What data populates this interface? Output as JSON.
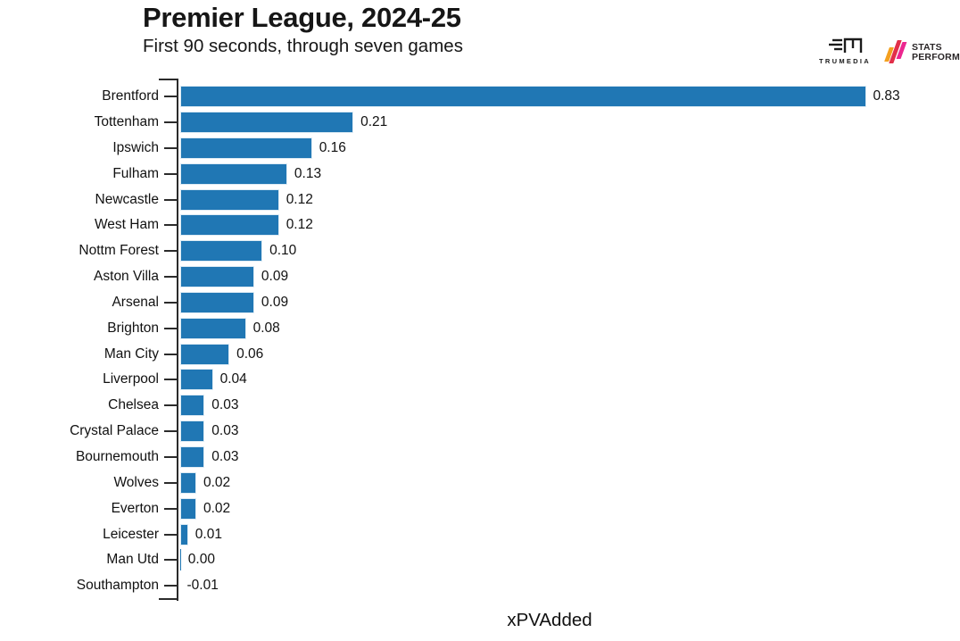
{
  "header": {
    "title": "Premier League, 2024-25",
    "subtitle": "First 90 seconds, through seven games"
  },
  "branding": {
    "trumedia": {
      "label": "TRUMEDIA"
    },
    "stats_perform": {
      "line1": "STATS",
      "line2": "PERFORM"
    }
  },
  "colors": {
    "bar": "#2077b4",
    "bar_edge": "rgba(255,255,255,0.85)",
    "axis": "#2b2b2b",
    "text": "#111111",
    "slash_orange": "#f4a01f",
    "slash_red": "#e22f49",
    "slash_pink": "#ec268f"
  },
  "chart_data": {
    "type": "bar",
    "orientation": "horizontal",
    "title": "Premier League, 2024-25",
    "subtitle": "First 90 seconds, through seven games",
    "xlabel": "xPVAdded",
    "grid": false,
    "legend": "none",
    "xlim": [
      0,
      0.9
    ],
    "categories": [
      "Brentford",
      "Tottenham",
      "Ipswich",
      "Fulham",
      "Newcastle",
      "West Ham",
      "Nottm Forest",
      "Aston Villa",
      "Arsenal",
      "Brighton",
      "Man City",
      "Liverpool",
      "Chelsea",
      "Crystal Palace",
      "Bournemouth",
      "Wolves",
      "Everton",
      "Leicester",
      "Man Utd",
      "Southampton"
    ],
    "values": [
      0.83,
      0.21,
      0.16,
      0.13,
      0.12,
      0.12,
      0.1,
      0.09,
      0.09,
      0.08,
      0.06,
      0.04,
      0.03,
      0.03,
      0.03,
      0.02,
      0.02,
      0.01,
      0.0,
      -0.01
    ],
    "value_labels": [
      "0.83",
      "0.21",
      "0.16",
      "0.13",
      "0.12",
      "0.12",
      "0.10",
      "0.09",
      "0.09",
      "0.08",
      "0.06",
      "0.04",
      "0.03",
      "0.03",
      "0.03",
      "0.02",
      "0.02",
      "0.01",
      "0.00",
      "-0.01"
    ]
  }
}
